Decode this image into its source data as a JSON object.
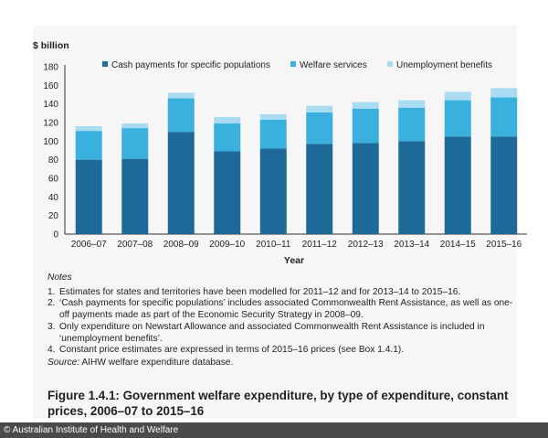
{
  "chart_data": {
    "type": "bar",
    "stacked": true,
    "ylabel": "$ billion",
    "xlabel": "Year",
    "ylim": [
      0,
      180
    ],
    "yticks": [
      0,
      20,
      40,
      60,
      80,
      100,
      120,
      140,
      160,
      180
    ],
    "grid": false,
    "legend_position": "top",
    "categories": [
      "2006–07",
      "2007–08",
      "2008–09",
      "2009–10",
      "2010–11",
      "2011–12",
      "2012–13",
      "2013–14",
      "2014–15",
      "2015–16"
    ],
    "series": [
      {
        "name": "Cash payments for specific populations",
        "color": "#1d6a98",
        "values": [
          80,
          81,
          110,
          89,
          92,
          97,
          98,
          100,
          105,
          105
        ]
      },
      {
        "name": "Welfare services",
        "color": "#3ab0df",
        "values": [
          31,
          33,
          36,
          30,
          31,
          34,
          37,
          36,
          39,
          42
        ]
      },
      {
        "name": "Unemployment benefits",
        "color": "#a9dcf3",
        "values": [
          5,
          5,
          6,
          7,
          6,
          7,
          7,
          8,
          9,
          10
        ]
      }
    ]
  },
  "notes": {
    "header": "Notes",
    "items": [
      {
        "num": "1.",
        "text": "Estimates for states and territories have been modelled for 2011–12 and for 2013–14 to 2015–16."
      },
      {
        "num": "2.",
        "text": "‘Cash payments for specific populations’ includes associated Commonwealth Rent Assistance, as well as one-off payments made as part of the Economic Security Strategy in 2008–09."
      },
      {
        "num": "3.",
        "text": "Only expenditure on Newstart Allowance and associated Commonwealth Rent Assistance is included in ‘unemployment benefits’."
      },
      {
        "num": "4.",
        "text": "Constant price estimates are expressed in terms of 2015–16 prices (see Box 1.4.1)."
      }
    ],
    "source_label": "Source:",
    "source_text": " AIHW welfare expenditure database."
  },
  "caption": "Figure 1.4.1: Government welfare expenditure, by type of expenditure, constant prices, 2006–07 to 2015–16",
  "credit": "© Australian Institute of Health and Welfare"
}
